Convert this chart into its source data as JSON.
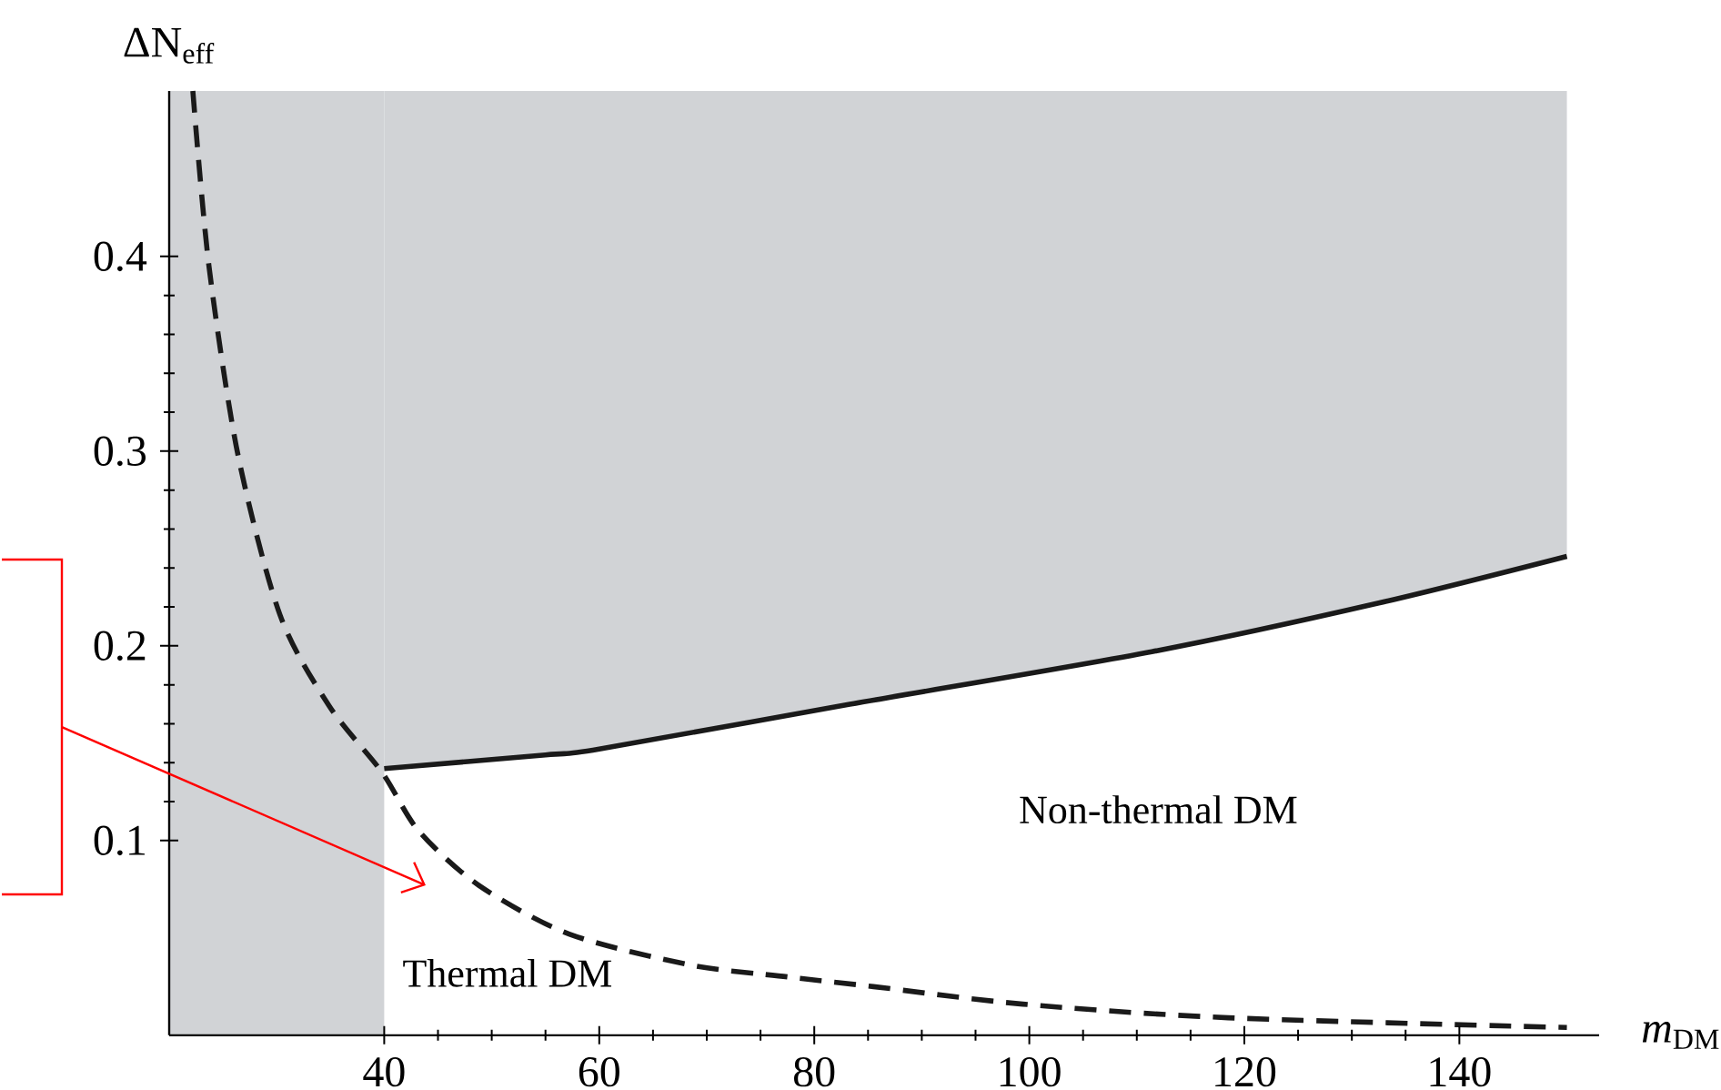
{
  "chart_data": {
    "type": "line",
    "xlabel": "*m*$_{DM}$",
    "ylabel": "ΔN$_{eff}$",
    "xlim": [
      20,
      153
    ],
    "ylim": [
      0,
      0.485
    ],
    "xticks": [
      40,
      60,
      80,
      100,
      120,
      140
    ],
    "yticks": [
      0.1,
      0.2,
      0.3,
      0.4
    ],
    "grid": false,
    "marker": "none",
    "annotations": [
      "Thermal DM",
      "Non-thermal DM"
    ],
    "bands": [
      {
        "axis": "x",
        "from": 20,
        "to": 40,
        "color": "#d1d3d6"
      }
    ],
    "series": [
      {
        "color": "#1a1a1a",
        "line_style": "dashed",
        "x": [
          22.2,
          23.7,
          26.4,
          30.3,
          34.9,
          39.8,
          43.2,
          48.8,
          57.2,
          68.6,
          77.5,
          85.5,
          99.4,
          118.5,
          150
        ],
        "values": [
          0.485,
          0.395,
          0.298,
          0.216,
          0.169,
          0.135,
          0.105,
          0.077,
          0.052,
          0.036,
          0.03,
          0.025,
          0.016,
          0.009,
          0.004
        ]
      },
      {
        "color": "#1a1a1a",
        "line_style": "solid",
        "x": [
          40,
          55,
          60,
          83.3,
          111.4,
          132.5,
          150
        ],
        "values": [
          0.137,
          0.144,
          0.147,
          0.17,
          0.197,
          0.222,
          0.246
        ],
        "lower": [
          0.137,
          0.144,
          0.147,
          0.17,
          0.197,
          0.222,
          0.246
        ],
        "upper": [
          0.485,
          0.485,
          0.485,
          0.485,
          0.485,
          0.485,
          0.485
        ]
      }
    ]
  }
}
